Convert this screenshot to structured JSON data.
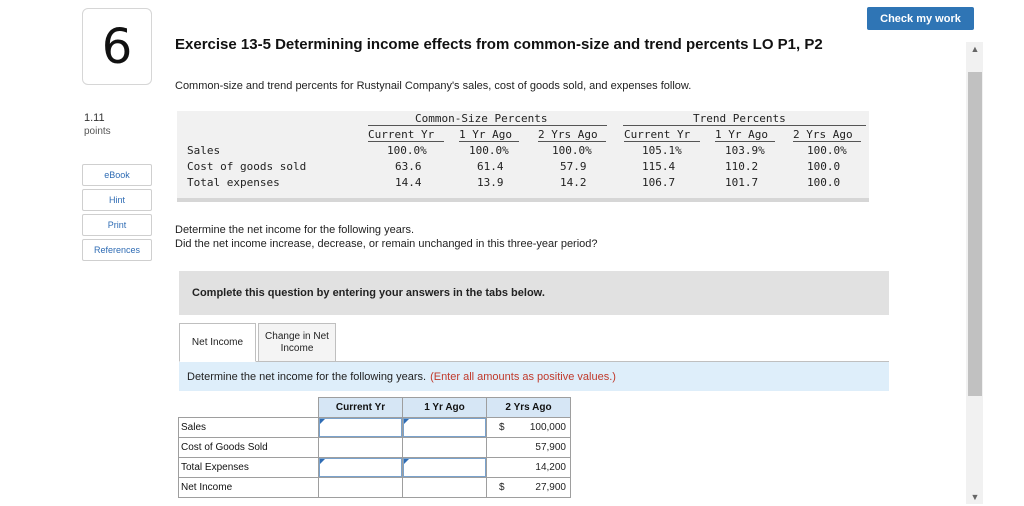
{
  "question_number": "6",
  "points": {
    "value": "1.11",
    "label": "points"
  },
  "side_links": [
    "eBook",
    "Hint",
    "Print",
    "References"
  ],
  "check_work_label": "Check my work",
  "title": "Exercise 13-5 Determining income effects from common-size and trend percents LO P1, P2",
  "intro": "Common-size and trend percents for Rustynail Company's sales, cost of goods sold, and expenses follow.",
  "percent_table": {
    "common_size_header": "Common-Size Percents",
    "trend_header": "Trend Percents",
    "columns": [
      "Current Yr",
      "1 Yr Ago",
      "2 Yrs Ago",
      "Current Yr",
      "1 Yr Ago",
      "2 Yrs Ago"
    ],
    "rows": [
      {
        "label": "Sales",
        "values": [
          "100.0%",
          "100.0%",
          "100.0%",
          "105.1%",
          "103.9%",
          "100.0%"
        ]
      },
      {
        "label": "Cost of goods sold",
        "values": [
          "63.6",
          "61.4",
          "57.9",
          "115.4",
          "110.2",
          "100.0"
        ]
      },
      {
        "label": "Total expenses",
        "values": [
          "14.4",
          "13.9",
          "14.2",
          "106.7",
          "101.7",
          "100.0"
        ]
      }
    ]
  },
  "instructions": [
    "Determine the net income for the following years.",
    "Did the net income increase, decrease, or remain unchanged in this three-year period?"
  ],
  "complete_prompt": "Complete this question by entering your answers in the tabs below.",
  "tabs": [
    {
      "label": "Net Income",
      "active": true
    },
    {
      "label": "Change in Net Income",
      "active": false
    }
  ],
  "task": {
    "text": "Determine the net income for the following years.",
    "note": "(Enter all amounts as positive values.)"
  },
  "answer_table": {
    "columns": [
      "Current Yr",
      "1 Yr Ago",
      "2 Yrs Ago"
    ],
    "rows": [
      {
        "label": "Sales",
        "current": "",
        "one_yr": "",
        "two_yr": "100,000",
        "dollar": "$"
      },
      {
        "label": "Cost of Goods Sold",
        "current": "",
        "one_yr": "",
        "two_yr": "57,900",
        "dollar": ""
      },
      {
        "label": "Total Expenses",
        "current": "",
        "one_yr": "",
        "two_yr": "14,200",
        "dollar": ""
      },
      {
        "label": "Net Income",
        "current": "",
        "one_yr": "",
        "two_yr": "27,900",
        "dollar": "$"
      }
    ]
  },
  "colors": {
    "accent": "#2f75b5",
    "header_fill": "#d6e6f5",
    "task_bar": "#deeefa",
    "note": "#c0392b"
  }
}
